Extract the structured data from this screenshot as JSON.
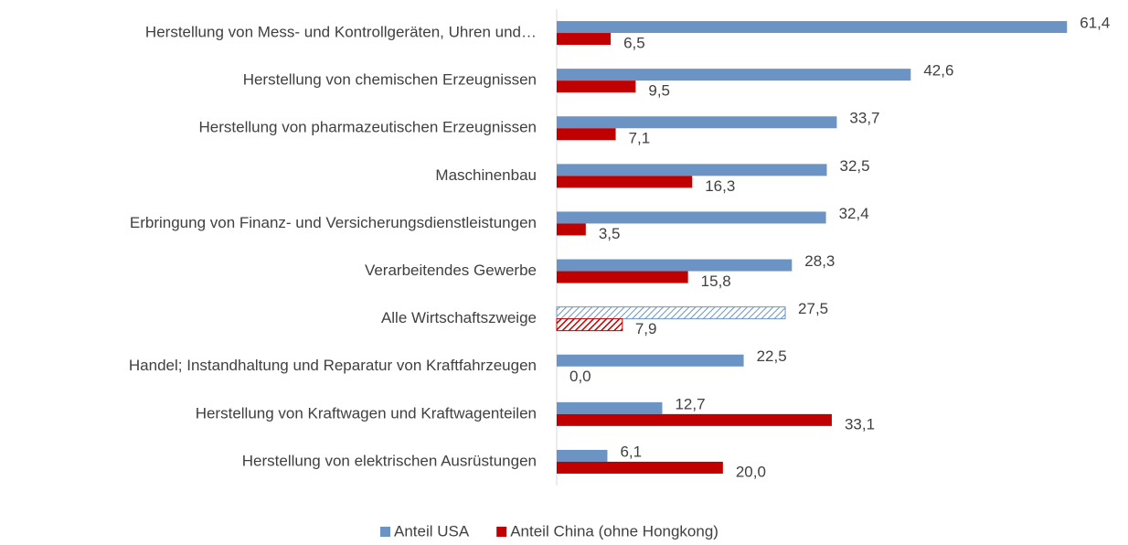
{
  "chart_data": {
    "type": "bar",
    "orientation": "horizontal",
    "categories": [
      "Herstellung von  Mess- und Kontrollgeräten, Uhren und…",
      "Herstellung von chemischen Erzeugnissen",
      "Herstellung von pharmazeutischen  Erzeugnissen",
      "Maschinenbau",
      "Erbringung von Finanz- und Versicherungsdienstleistungen",
      "Verarbeitendes Gewerbe",
      "Alle Wirtschaftszweige",
      "Handel; Instandhaltung und Reparatur von Kraftfahrzeugen",
      "Herstellung von Kraftwagen und Kraftwagenteilen",
      "Herstellung von elektrischen Ausrüstungen"
    ],
    "series": [
      {
        "name": "Anteil USA",
        "color": "#6b93c4",
        "values": [
          61.4,
          42.6,
          33.7,
          32.5,
          32.4,
          28.3,
          27.5,
          22.5,
          12.7,
          6.1
        ],
        "value_labels": [
          "61,4",
          "42,6",
          "33,7",
          "32,5",
          "32,4",
          "28,3",
          "27,5",
          "22,5",
          "12,7",
          "6,1"
        ]
      },
      {
        "name": "Anteil China (ohne Hongkong)",
        "color": "#c00000",
        "values": [
          6.5,
          9.5,
          7.1,
          16.3,
          3.5,
          15.8,
          7.9,
          0.0,
          33.1,
          20.0
        ],
        "value_labels": [
          "6,5",
          "9,5",
          "7,1",
          "16,3",
          "3,5",
          "15,8",
          "7,9",
          "0,0",
          "33,1",
          "20,0"
        ]
      }
    ],
    "hatched_index": 6,
    "xlim": [
      0,
      65
    ],
    "legend": "bottom"
  }
}
